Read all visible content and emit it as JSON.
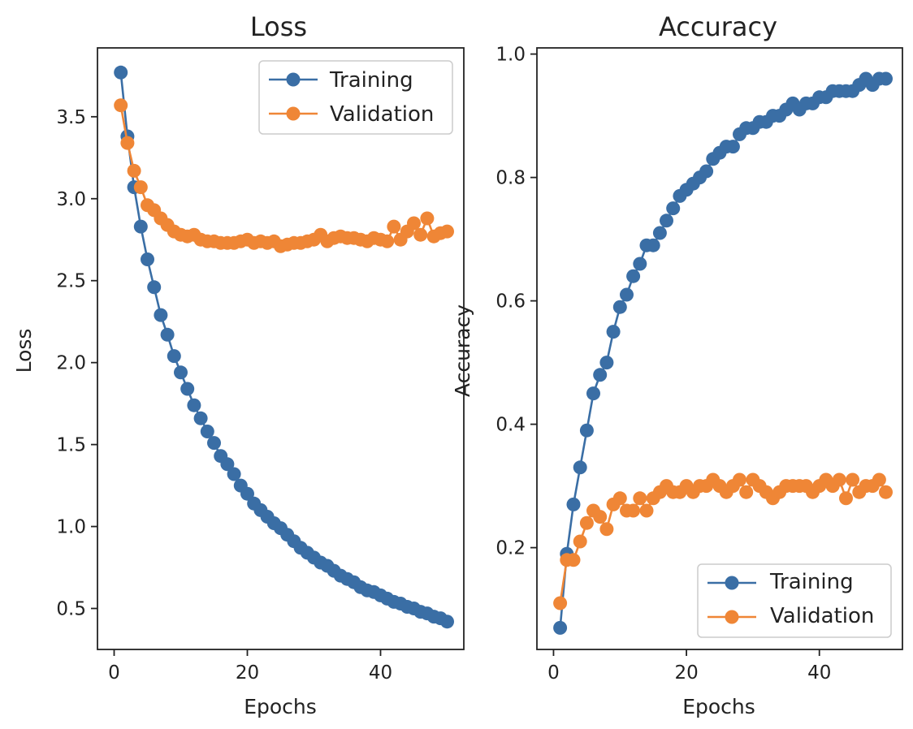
{
  "chart_data": [
    {
      "type": "line",
      "title": "Loss",
      "xlabel": "Epochs",
      "ylabel": "Loss",
      "xlim": [
        -2.5,
        52.5
      ],
      "ylim": [
        0.25,
        3.92
      ],
      "xticks": [
        0,
        20,
        40
      ],
      "yticks": [
        0.5,
        1.0,
        1.5,
        2.0,
        2.5,
        3.0,
        3.5
      ],
      "ytick_labels": [
        "0.5",
        "1.0",
        "1.5",
        "2.0",
        "2.5",
        "3.0",
        "3.5"
      ],
      "legend_position": "upper right",
      "x": [
        1,
        2,
        3,
        4,
        5,
        6,
        7,
        8,
        9,
        10,
        11,
        12,
        13,
        14,
        15,
        16,
        17,
        18,
        19,
        20,
        21,
        22,
        23,
        24,
        25,
        26,
        27,
        28,
        29,
        30,
        31,
        32,
        33,
        34,
        35,
        36,
        37,
        38,
        39,
        40,
        41,
        42,
        43,
        44,
        45,
        46,
        47,
        48,
        49,
        50
      ],
      "series": [
        {
          "name": "Training",
          "color": "#3a6ea5",
          "values": [
            3.77,
            3.38,
            3.07,
            2.83,
            2.63,
            2.46,
            2.29,
            2.17,
            2.04,
            1.94,
            1.84,
            1.74,
            1.66,
            1.58,
            1.51,
            1.43,
            1.38,
            1.32,
            1.25,
            1.2,
            1.14,
            1.1,
            1.06,
            1.02,
            0.99,
            0.95,
            0.91,
            0.87,
            0.84,
            0.81,
            0.78,
            0.76,
            0.73,
            0.7,
            0.68,
            0.66,
            0.63,
            0.61,
            0.6,
            0.58,
            0.56,
            0.54,
            0.53,
            0.51,
            0.5,
            0.48,
            0.47,
            0.45,
            0.44,
            0.42
          ]
        },
        {
          "name": "Validation",
          "color": "#ef8636",
          "values": [
            3.57,
            3.34,
            3.17,
            3.07,
            2.96,
            2.93,
            2.88,
            2.84,
            2.8,
            2.78,
            2.77,
            2.78,
            2.75,
            2.74,
            2.74,
            2.73,
            2.73,
            2.73,
            2.74,
            2.75,
            2.73,
            2.74,
            2.73,
            2.74,
            2.71,
            2.72,
            2.73,
            2.73,
            2.74,
            2.75,
            2.78,
            2.74,
            2.76,
            2.77,
            2.76,
            2.76,
            2.75,
            2.74,
            2.76,
            2.75,
            2.74,
            2.83,
            2.75,
            2.8,
            2.85,
            2.78,
            2.88,
            2.77,
            2.79,
            2.8
          ]
        }
      ]
    },
    {
      "type": "line",
      "title": "Accuracy",
      "xlabel": "Epochs",
      "ylabel": "Accuracy",
      "xlim": [
        -2.5,
        52.5
      ],
      "ylim": [
        0.035,
        1.01
      ],
      "xticks": [
        0,
        20,
        40
      ],
      "yticks": [
        0.2,
        0.4,
        0.6,
        0.8,
        1.0
      ],
      "ytick_labels": [
        "0.2",
        "0.4",
        "0.6",
        "0.8",
        "1.0"
      ],
      "legend_position": "lower right",
      "x": [
        1,
        2,
        3,
        4,
        5,
        6,
        7,
        8,
        9,
        10,
        11,
        12,
        13,
        14,
        15,
        16,
        17,
        18,
        19,
        20,
        21,
        22,
        23,
        24,
        25,
        26,
        27,
        28,
        29,
        30,
        31,
        32,
        33,
        34,
        35,
        36,
        37,
        38,
        39,
        40,
        41,
        42,
        43,
        44,
        45,
        46,
        47,
        48,
        49,
        50
      ],
      "series": [
        {
          "name": "Training",
          "color": "#3a6ea5",
          "values": [
            0.07,
            0.19,
            0.27,
            0.33,
            0.39,
            0.45,
            0.48,
            0.5,
            0.55,
            0.59,
            0.61,
            0.64,
            0.66,
            0.69,
            0.69,
            0.71,
            0.73,
            0.75,
            0.77,
            0.78,
            0.79,
            0.8,
            0.81,
            0.83,
            0.84,
            0.85,
            0.85,
            0.87,
            0.88,
            0.88,
            0.89,
            0.89,
            0.9,
            0.9,
            0.91,
            0.92,
            0.91,
            0.92,
            0.92,
            0.93,
            0.93,
            0.94,
            0.94,
            0.94,
            0.94,
            0.95,
            0.96,
            0.95,
            0.96,
            0.96
          ]
        },
        {
          "name": "Validation",
          "color": "#ef8636",
          "values": [
            0.11,
            0.18,
            0.18,
            0.21,
            0.24,
            0.26,
            0.25,
            0.23,
            0.27,
            0.28,
            0.26,
            0.26,
            0.28,
            0.26,
            0.28,
            0.29,
            0.3,
            0.29,
            0.29,
            0.3,
            0.29,
            0.3,
            0.3,
            0.31,
            0.3,
            0.29,
            0.3,
            0.31,
            0.29,
            0.31,
            0.3,
            0.29,
            0.28,
            0.29,
            0.3,
            0.3,
            0.3,
            0.3,
            0.29,
            0.3,
            0.31,
            0.3,
            0.31,
            0.28,
            0.31,
            0.29,
            0.3,
            0.3,
            0.31,
            0.29
          ]
        }
      ]
    }
  ]
}
